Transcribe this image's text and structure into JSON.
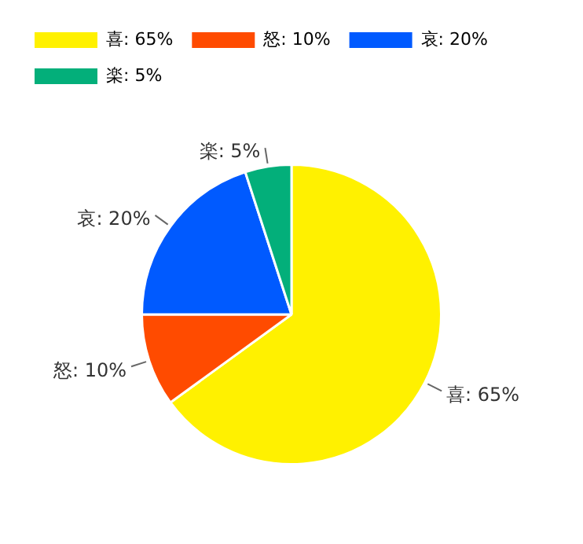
{
  "chart_data": {
    "type": "pie",
    "categories": [
      "喜",
      "怒",
      "哀",
      "楽"
    ],
    "values": [
      65,
      10,
      20,
      5
    ],
    "value_labels": [
      "65%",
      "10%",
      "20%",
      "5%"
    ],
    "colors": [
      "#fff100",
      "#ff4b00",
      "#005aff",
      "#03af7a"
    ],
    "legend": "top left"
  }
}
